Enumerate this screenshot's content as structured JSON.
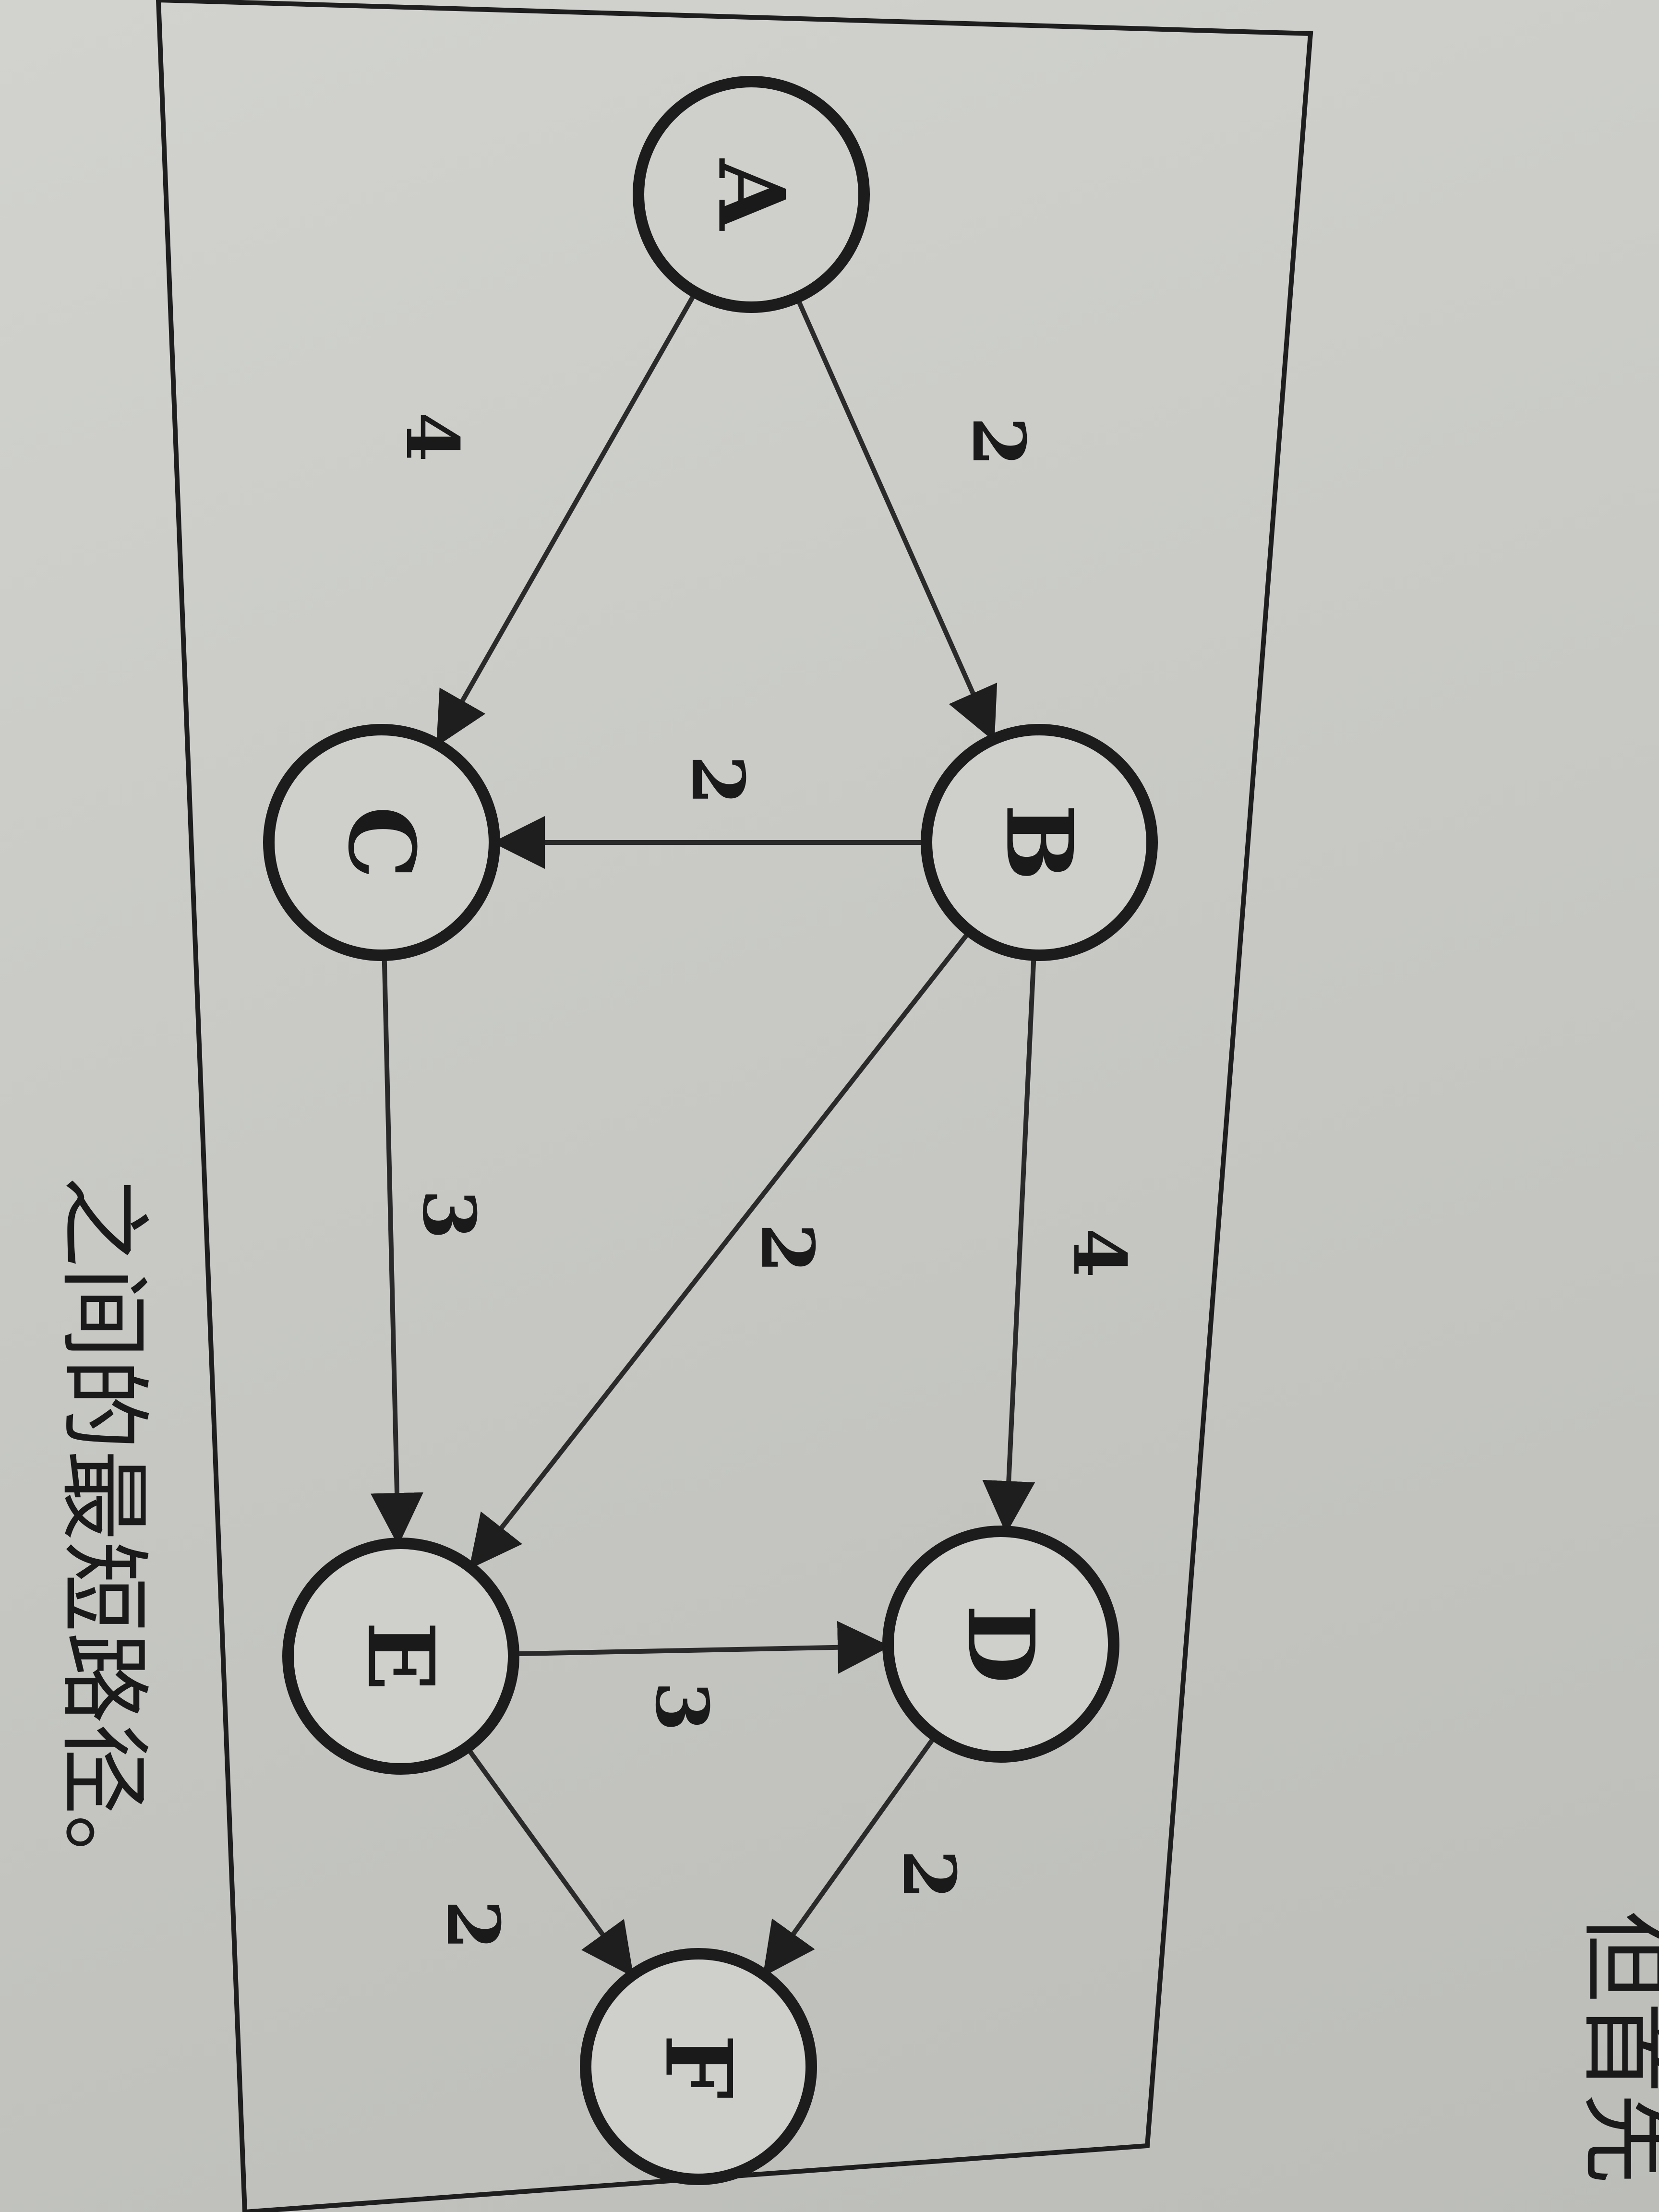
{
  "nodes": [
    {
      "id": "A",
      "label": "A"
    },
    {
      "id": "B",
      "label": "B"
    },
    {
      "id": "C",
      "label": "C"
    },
    {
      "id": "D",
      "label": "D"
    },
    {
      "id": "E",
      "label": "E"
    },
    {
      "id": "F",
      "label": "F"
    }
  ],
  "edges": [
    {
      "from": "A",
      "to": "B",
      "weight": "2"
    },
    {
      "from": "A",
      "to": "C",
      "weight": "4"
    },
    {
      "from": "B",
      "to": "C",
      "weight": "2"
    },
    {
      "from": "B",
      "to": "D",
      "weight": "4"
    },
    {
      "from": "B",
      "to": "E",
      "weight": "2"
    },
    {
      "from": "C",
      "to": "E",
      "weight": "3"
    },
    {
      "from": "E",
      "to": "D",
      "weight": "3"
    },
    {
      "from": "D",
      "to": "F",
      "weight": "2"
    },
    {
      "from": "E",
      "to": "F",
      "weight": "2"
    }
  ],
  "caption": {
    "left": "之间的最短路径。",
    "right": "但首先"
  }
}
